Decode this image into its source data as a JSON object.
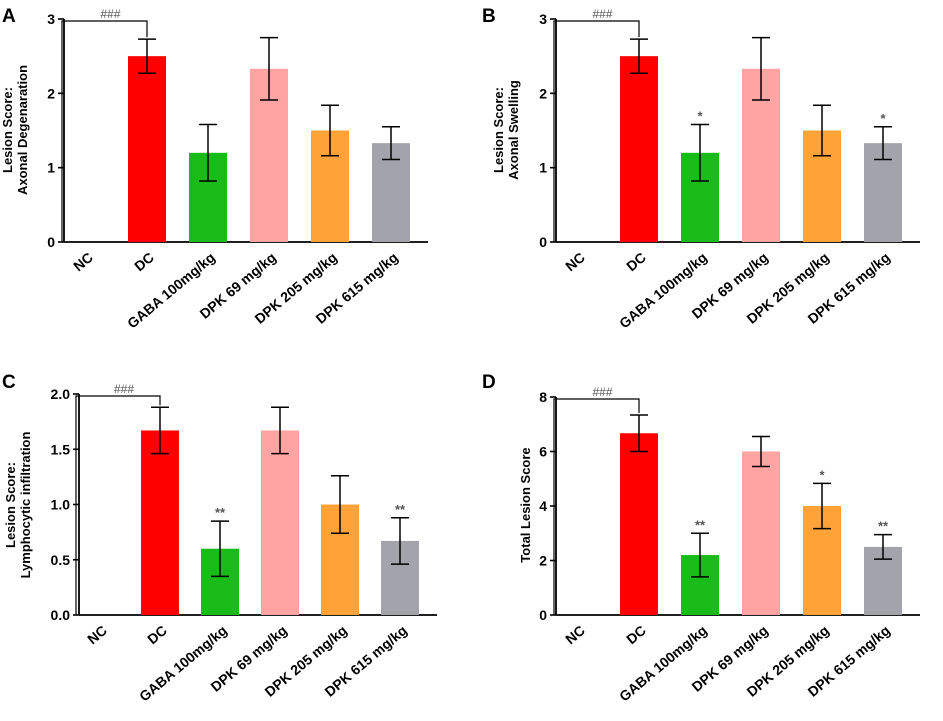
{
  "figure": {
    "colors": {
      "NC": "#ffffff",
      "DC": "#ff0000",
      "GABA": "#19bb19",
      "DPK69": "#ffa3a3",
      "DPK205": "#ffa238",
      "DPK615": "#a3a3ab",
      "axis": "#000000",
      "annotation": "#555555"
    }
  },
  "chart_data": [
    {
      "panel": "A",
      "type": "bar",
      "ylabel_lines": [
        "Lesion Score:",
        "Axonal Degenaration"
      ],
      "categories": [
        "NC",
        "DC",
        "GABA 100mg/kg",
        "DPK 69 mg/kg",
        "DPK 205 mg/kg",
        "DPK 615 mg/kg"
      ],
      "values": [
        0,
        2.5,
        1.2,
        2.33,
        1.5,
        1.33
      ],
      "errors": [
        0,
        0.23,
        0.38,
        0.42,
        0.34,
        0.22
      ],
      "significance": [
        "",
        "",
        "",
        "",
        "",
        ""
      ],
      "bracket_label": "###",
      "ylim": [
        0,
        3
      ],
      "yticks": [
        0,
        1,
        2,
        3
      ],
      "ytick_labels": [
        "0",
        "1",
        "2",
        "3"
      ]
    },
    {
      "panel": "B",
      "type": "bar",
      "ylabel_lines": [
        "Lesion Score:",
        "Axonal Swelling"
      ],
      "categories": [
        "NC",
        "DC",
        "GABA 100mg/kg",
        "DPK 69 mg/kg",
        "DPK 205 mg/kg",
        "DPK 615 mg/kg"
      ],
      "values": [
        0,
        2.5,
        1.2,
        2.33,
        1.5,
        1.33
      ],
      "errors": [
        0,
        0.23,
        0.38,
        0.42,
        0.34,
        0.22
      ],
      "significance": [
        "",
        "",
        "*",
        "",
        "",
        "*"
      ],
      "bracket_label": "###",
      "ylim": [
        0,
        3
      ],
      "yticks": [
        0,
        1,
        2,
        3
      ],
      "ytick_labels": [
        "0",
        "1",
        "2",
        "3"
      ]
    },
    {
      "panel": "C",
      "type": "bar",
      "ylabel_lines": [
        "Lesion Score:",
        "Lymphocytic infiltration"
      ],
      "categories": [
        "NC",
        "DC",
        "GABA 100mg/kg",
        "DPK 69 mg/kg",
        "DPK 205 mg/kg",
        "DPK 615 mg/kg"
      ],
      "values": [
        0,
        1.67,
        0.6,
        1.67,
        1.0,
        0.67
      ],
      "errors": [
        0,
        0.21,
        0.25,
        0.21,
        0.26,
        0.21
      ],
      "significance": [
        "",
        "",
        "**",
        "",
        "",
        "**"
      ],
      "bracket_label": "###",
      "ylim": [
        0,
        2
      ],
      "yticks": [
        0,
        0.5,
        1,
        1.5,
        2
      ],
      "ytick_labels": [
        "0.0",
        "0.5",
        "1.0",
        "1.5",
        "2.0"
      ]
    },
    {
      "panel": "D",
      "type": "bar",
      "ylabel_lines": [
        "Total Lesion Score"
      ],
      "categories": [
        "NC",
        "DC",
        "GABA 100mg/kg",
        "DPK 69 mg/kg",
        "DPK 205 mg/kg",
        "DPK 615 mg/kg"
      ],
      "values": [
        0,
        6.67,
        2.2,
        6.0,
        4.0,
        2.5
      ],
      "errors": [
        0,
        0.67,
        0.8,
        0.55,
        0.83,
        0.45
      ],
      "significance": [
        "",
        "",
        "**",
        "",
        "*",
        "**"
      ],
      "bracket_label": "###",
      "ylim": [
        0,
        8
      ],
      "yticks": [
        0,
        2,
        4,
        6,
        8
      ],
      "ytick_labels": [
        "0",
        "2",
        "4",
        "6",
        "8"
      ]
    }
  ]
}
